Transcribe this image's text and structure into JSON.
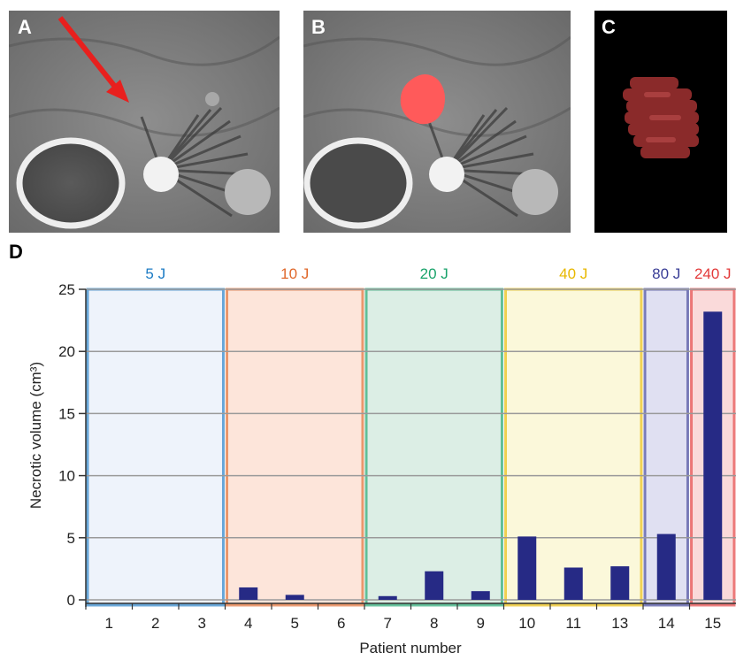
{
  "panels": [
    {
      "label": "A"
    },
    {
      "label": "B"
    },
    {
      "label": "C"
    },
    {
      "label": "D"
    }
  ],
  "colors": {
    "bar": "#262a85",
    "mark": "#ff5a5a",
    "arrow": "#e8201e"
  },
  "chart_data": {
    "type": "bar",
    "title": "",
    "xlabel": "Patient number",
    "ylabel": "Necrotic volume (cm³)",
    "ylim": [
      0,
      25
    ],
    "yticks": [
      0,
      5,
      10,
      15,
      20,
      25
    ],
    "grid": true,
    "categories": [
      "1",
      "2",
      "3",
      "4",
      "5",
      "6",
      "7",
      "8",
      "9",
      "10",
      "11",
      "13",
      "14",
      "15"
    ],
    "values": [
      0,
      0,
      0,
      1.0,
      0.4,
      0,
      0.3,
      2.3,
      0.7,
      5.1,
      2.6,
      2.7,
      5.3,
      23.2
    ],
    "groups": [
      {
        "name": "5 J",
        "start": 0,
        "end": 2,
        "color": "#1c7bc4",
        "fill": "#eef3fb"
      },
      {
        "name": "10 J",
        "start": 3,
        "end": 5,
        "color": "#e0682b",
        "fill": "#fde5da"
      },
      {
        "name": "20 J",
        "start": 6,
        "end": 8,
        "color": "#1aa36b",
        "fill": "#dceee5"
      },
      {
        "name": "40 J",
        "start": 9,
        "end": 11,
        "color": "#e8b800",
        "fill": "#fbf8da"
      },
      {
        "name": "80 J",
        "start": 12,
        "end": 12,
        "color": "#3a3e96",
        "fill": "#e0e0f2"
      },
      {
        "name": "240 J",
        "start": 13,
        "end": 13,
        "color": "#e33a3a",
        "fill": "#fadada"
      }
    ]
  }
}
